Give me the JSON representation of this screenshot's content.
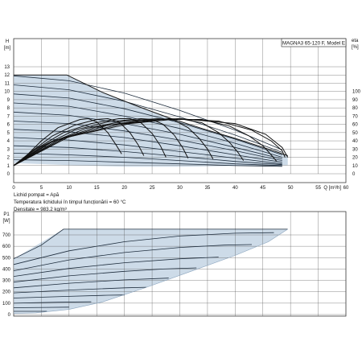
{
  "chart_data": [
    {
      "type": "line",
      "title": "MAGNA3 65-120 F, Model E",
      "ylabel_top": "H",
      "ylabel_unit": "[m]",
      "y2label_top": "eta",
      "y2label_unit": "[%]",
      "xlabel": "Q [m³/h]",
      "xlim": [
        0,
        60
      ],
      "ylim": [
        0,
        14
      ],
      "y2lim": [
        0,
        140
      ],
      "xticks": [
        0,
        5,
        10,
        15,
        20,
        25,
        30,
        35,
        40,
        45,
        50,
        55,
        60
      ],
      "yticks": [
        0,
        1,
        2,
        3,
        4,
        5,
        6,
        7,
        8,
        9,
        10,
        11,
        12,
        13
      ],
      "y2ticks": [
        0,
        10,
        20,
        30,
        40,
        50,
        60,
        70,
        80,
        90,
        100
      ],
      "notes": [
        "Lichid pompat = Apă",
        "Temperatura lichidului în timpul funcționării = 60 °C",
        "Densitate = 983.2 kg/m³"
      ],
      "operating_area": {
        "upper_left": [
          [
            0,
            12.0
          ],
          [
            9.6,
            12.0
          ]
        ],
        "upper_envelope": [
          [
            9.6,
            12.0
          ],
          [
            16,
            9.9
          ],
          [
            22,
            8.3
          ],
          [
            28,
            6.8
          ],
          [
            34,
            5.5
          ],
          [
            40,
            4.3
          ],
          [
            46,
            3.0
          ],
          [
            49.5,
            2.2
          ]
        ],
        "lower_envelope": [
          [
            0,
            1.3
          ],
          [
            10,
            1.05
          ],
          [
            20,
            0.85
          ],
          [
            30,
            0.85
          ],
          [
            40,
            0.95
          ],
          [
            49.5,
            1.05
          ]
        ]
      },
      "series": [
        {
          "values": [
            [
              0,
              11.9
            ],
            [
              10,
              11.3
            ],
            [
              20,
              9.8
            ],
            [
              30,
              7.7
            ],
            [
              40,
              5.3
            ],
            [
              48.5,
              2.9
            ]
          ]
        },
        {
          "values": [
            [
              0,
              10.8
            ],
            [
              10,
              10.2
            ],
            [
              20,
              8.8
            ],
            [
              30,
              6.9
            ],
            [
              40,
              4.7
            ],
            [
              48.5,
              2.6
            ]
          ]
        },
        {
          "values": [
            [
              0,
              9.7
            ],
            [
              10,
              9.2
            ],
            [
              20,
              7.9
            ],
            [
              30,
              6.2
            ],
            [
              40,
              4.2
            ],
            [
              48.5,
              2.3
            ]
          ]
        },
        {
          "values": [
            [
              0,
              8.6
            ],
            [
              10,
              8.2
            ],
            [
              20,
              7.0
            ],
            [
              30,
              5.5
            ],
            [
              40,
              3.7
            ],
            [
              48.5,
              2.0
            ]
          ]
        },
        {
          "values": [
            [
              0,
              7.5
            ],
            [
              10,
              7.1
            ],
            [
              20,
              6.1
            ],
            [
              30,
              4.8
            ],
            [
              40,
              3.2
            ],
            [
              48.5,
              1.8
            ]
          ]
        },
        {
          "values": [
            [
              0,
              6.4
            ],
            [
              10,
              6.1
            ],
            [
              20,
              5.2
            ],
            [
              30,
              4.1
            ],
            [
              40,
              2.8
            ],
            [
              48.5,
              1.6
            ]
          ]
        },
        {
          "values": [
            [
              0,
              5.4
            ],
            [
              10,
              5.1
            ],
            [
              20,
              4.4
            ],
            [
              30,
              3.4
            ],
            [
              40,
              2.3
            ],
            [
              48.5,
              1.4
            ]
          ]
        },
        {
          "values": [
            [
              0,
              4.4
            ],
            [
              10,
              4.1
            ],
            [
              20,
              3.5
            ],
            [
              30,
              2.7
            ],
            [
              40,
              1.9
            ],
            [
              48.5,
              1.2
            ]
          ]
        },
        {
          "values": [
            [
              0,
              3.4
            ],
            [
              10,
              3.2
            ],
            [
              20,
              2.7
            ],
            [
              30,
              2.1
            ],
            [
              40,
              1.5
            ],
            [
              48.5,
              1.1
            ]
          ]
        },
        {
          "values": [
            [
              0,
              2.5
            ],
            [
              10,
              2.3
            ],
            [
              20,
              2.0
            ],
            [
              30,
              1.6
            ],
            [
              40,
              1.2
            ],
            [
              48.5,
              1.0
            ]
          ]
        },
        {
          "values": [
            [
              0,
              1.7
            ],
            [
              10,
              1.6
            ],
            [
              20,
              1.4
            ],
            [
              30,
              1.2
            ],
            [
              40,
              1.0
            ],
            [
              48.5,
              0.9
            ]
          ]
        }
      ],
      "system_curves": [
        {
          "values": [
            [
              0,
              1.0
            ],
            [
              2,
              2.0
            ],
            [
              5,
              4.0
            ],
            [
              8,
              5.6
            ],
            [
              12,
              6.6
            ],
            [
              13.5,
              6.7
            ],
            [
              15,
              6.3
            ],
            [
              17,
              5.0
            ],
            [
              18.5,
              3.5
            ],
            [
              19.5,
              2.4
            ]
          ]
        },
        {
          "values": [
            [
              0,
              1.0
            ],
            [
              3,
              2.6
            ],
            [
              7,
              4.6
            ],
            [
              11,
              5.9
            ],
            [
              15,
              6.6
            ],
            [
              17,
              6.7
            ],
            [
              19,
              6.3
            ],
            [
              21,
              5.0
            ],
            [
              22.5,
              3.5
            ],
            [
              23.5,
              2.2
            ]
          ]
        },
        {
          "values": [
            [
              0,
              1.0
            ],
            [
              4,
              3.0
            ],
            [
              9,
              5.0
            ],
            [
              14,
              6.1
            ],
            [
              19,
              6.7
            ],
            [
              21,
              6.7
            ],
            [
              23,
              6.2
            ],
            [
              25,
              4.9
            ],
            [
              26.5,
              3.4
            ],
            [
              27.5,
              2.0
            ]
          ]
        },
        {
          "values": [
            [
              0,
              1.0
            ],
            [
              5,
              3.3
            ],
            [
              11,
              5.3
            ],
            [
              17,
              6.3
            ],
            [
              23,
              6.7
            ],
            [
              25,
              6.6
            ],
            [
              27,
              6.0
            ],
            [
              29,
              4.7
            ],
            [
              30.5,
              3.2
            ],
            [
              31.5,
              1.9
            ]
          ]
        },
        {
          "values": [
            [
              0,
              1.0
            ],
            [
              6,
              3.6
            ],
            [
              13,
              5.5
            ],
            [
              20,
              6.4
            ],
            [
              26,
              6.7
            ],
            [
              29,
              6.5
            ],
            [
              31.5,
              5.6
            ],
            [
              33.5,
              4.3
            ],
            [
              35,
              3.0
            ],
            [
              36,
              1.8
            ]
          ]
        },
        {
          "values": [
            [
              0,
              1.0
            ],
            [
              7,
              3.9
            ],
            [
              15,
              5.7
            ],
            [
              23,
              6.5
            ],
            [
              30,
              6.7
            ],
            [
              34,
              6.2
            ],
            [
              37,
              5.0
            ],
            [
              39,
              3.8
            ],
            [
              40.5,
              2.6
            ],
            [
              41.5,
              1.6
            ]
          ]
        },
        {
          "values": [
            [
              0,
              1.0
            ],
            [
              8,
              4.1
            ],
            [
              17,
              5.9
            ],
            [
              26,
              6.6
            ],
            [
              34,
              6.6
            ],
            [
              39,
              5.8
            ],
            [
              42.5,
              4.6
            ],
            [
              45,
              3.4
            ],
            [
              46.5,
              2.3
            ],
            [
              47.5,
              1.5
            ]
          ]
        },
        {
          "values": [
            [
              0,
              1.0
            ],
            [
              9,
              4.3
            ],
            [
              19,
              6.0
            ],
            [
              28,
              6.7
            ],
            [
              37,
              6.4
            ],
            [
              43,
              5.3
            ],
            [
              46.5,
              4.0
            ],
            [
              48.5,
              2.8
            ],
            [
              49,
              2.0
            ]
          ]
        },
        {
          "values": [
            [
              0,
              1.0
            ],
            [
              10,
              4.5
            ],
            [
              21,
              6.1
            ],
            [
              30,
              6.7
            ],
            [
              40,
              6.1
            ],
            [
              45.5,
              4.8
            ],
            [
              48.5,
              3.2
            ],
            [
              49.5,
              2.0
            ]
          ]
        }
      ]
    },
    {
      "type": "line",
      "ylabel_top": "P1",
      "ylabel_unit": "[W]",
      "xlim": [
        0,
        60
      ],
      "ylim": [
        0,
        800
      ],
      "yticks": [
        0,
        100,
        200,
        300,
        400,
        500,
        600,
        700
      ],
      "operating_area": {
        "upper": [
          [
            0,
            490
          ],
          [
            9,
            750
          ],
          [
            49.5,
            750
          ]
        ],
        "right": [
          [
            49.5,
            750
          ],
          [
            46,
            640
          ],
          [
            40,
            520
          ],
          [
            32,
            380
          ],
          [
            24,
            240
          ],
          [
            16,
            110
          ],
          [
            10,
            45
          ],
          [
            4,
            15
          ],
          [
            0,
            10
          ]
        ]
      },
      "series": [
        {
          "values": [
            [
              0,
              490
            ],
            [
              5,
              610
            ],
            [
              9,
              750
            ],
            [
              20,
              750
            ],
            [
              35,
              750
            ],
            [
              49.5,
              750
            ]
          ]
        },
        {
          "values": [
            [
              0,
              440
            ],
            [
              10,
              560
            ],
            [
              20,
              640
            ],
            [
              30,
              690
            ],
            [
              40,
              715
            ],
            [
              47,
              720
            ]
          ]
        },
        {
          "values": [
            [
              0,
              385
            ],
            [
              10,
              480
            ],
            [
              20,
              545
            ],
            [
              30,
              590
            ],
            [
              38,
              610
            ],
            [
              43,
              615
            ]
          ]
        },
        {
          "values": [
            [
              0,
              335
            ],
            [
              10,
              405
            ],
            [
              20,
              455
            ],
            [
              30,
              490
            ],
            [
              37,
              505
            ]
          ]
        },
        {
          "values": [
            [
              0,
              285
            ],
            [
              10,
              340
            ],
            [
              20,
              380
            ],
            [
              27,
              400
            ],
            [
              33,
              410
            ]
          ]
        },
        {
          "values": [
            [
              0,
              235
            ],
            [
              10,
              275
            ],
            [
              20,
              305
            ],
            [
              28,
              320
            ]
          ]
        },
        {
          "values": [
            [
              0,
              190
            ],
            [
              10,
              215
            ],
            [
              20,
              235
            ],
            [
              24,
              240
            ]
          ]
        },
        {
          "values": [
            [
              0,
              145
            ],
            [
              10,
              160
            ],
            [
              17,
              170
            ],
            [
              20,
              172
            ]
          ]
        },
        {
          "values": [
            [
              0,
              100
            ],
            [
              8,
              108
            ],
            [
              14,
              112
            ]
          ]
        },
        {
          "values": [
            [
              0,
              60
            ],
            [
              6,
              63
            ],
            [
              10,
              65
            ]
          ]
        },
        {
          "values": [
            [
              0,
              28
            ],
            [
              4,
              28
            ],
            [
              6,
              28
            ]
          ]
        }
      ]
    }
  ]
}
